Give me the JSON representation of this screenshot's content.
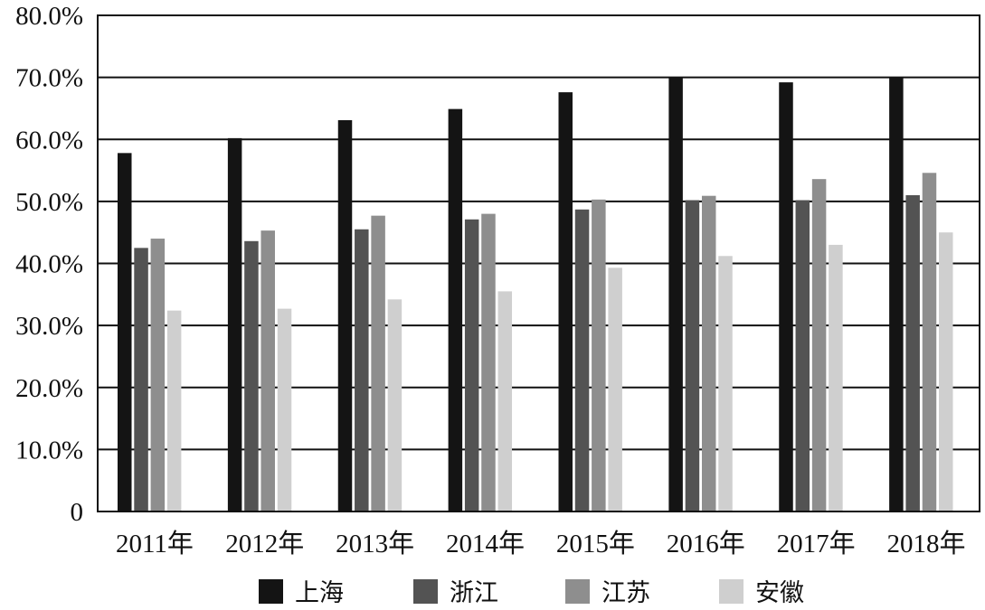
{
  "chart_data": {
    "type": "bar",
    "title": "",
    "xlabel": "",
    "ylabel": "",
    "categories": [
      "2011年",
      "2012年",
      "2013年",
      "2014年",
      "2015年",
      "2016年",
      "2017年",
      "2018年"
    ],
    "ylim": [
      0,
      80
    ],
    "y_ticks": [
      0,
      10,
      20,
      30,
      40,
      50,
      60,
      70,
      80
    ],
    "y_tick_labels": [
      "0",
      "10.0%",
      "20.0%",
      "30.0%",
      "40.0%",
      "50.0%",
      "60.0%",
      "70.0%",
      "80.0%"
    ],
    "grid": true,
    "legend_position": "bottom",
    "series": [
      {
        "name": "上海",
        "color": "#141414",
        "values": [
          57.8,
          60.2,
          63.1,
          64.9,
          67.6,
          70.0,
          69.2,
          70.0
        ]
      },
      {
        "name": "浙江",
        "color": "#535353",
        "values": [
          42.5,
          43.6,
          45.5,
          47.1,
          48.7,
          50.2,
          50.2,
          51.0
        ]
      },
      {
        "name": "江苏",
        "color": "#8e8e8e",
        "values": [
          44.0,
          45.3,
          47.7,
          48.0,
          50.3,
          50.9,
          53.6,
          54.6
        ]
      },
      {
        "name": "安徽",
        "color": "#cfcfcf",
        "values": [
          32.4,
          32.7,
          34.2,
          35.5,
          39.3,
          41.2,
          43.0,
          45.0
        ]
      }
    ]
  }
}
